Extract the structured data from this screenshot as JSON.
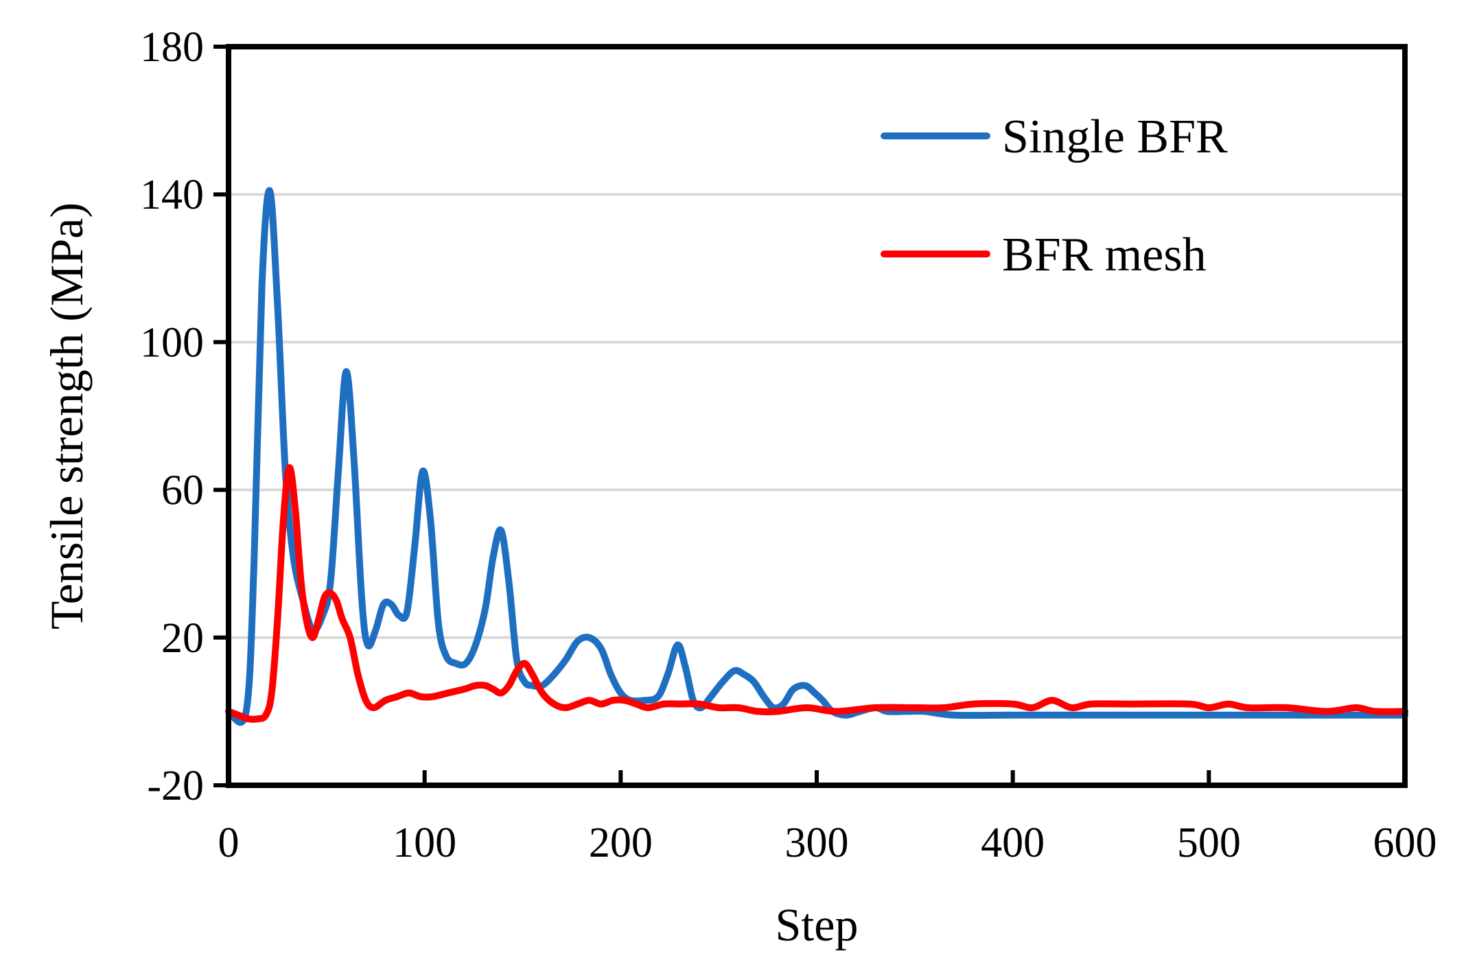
{
  "chart_data": {
    "type": "line",
    "title": "",
    "xlabel": "Step",
    "ylabel": "Tensile strength (MPa)",
    "xlim": [
      0,
      600
    ],
    "ylim": [
      -20,
      180
    ],
    "xticks": [
      "0",
      "100",
      "200",
      "300",
      "400",
      "500",
      "600"
    ],
    "yticks": [
      "-20",
      "20",
      "60",
      "100",
      "140",
      "180"
    ],
    "grid": "horizontal",
    "legend_position": "top-right",
    "series": [
      {
        "name": "Single BFR",
        "color": "#1f6fc1",
        "points": [
          [
            0,
            0
          ],
          [
            9,
            0
          ],
          [
            13,
            40
          ],
          [
            17,
            115
          ],
          [
            21,
            141
          ],
          [
            25,
            110
          ],
          [
            29,
            65
          ],
          [
            33,
            42
          ],
          [
            38,
            30
          ],
          [
            43,
            22
          ],
          [
            48,
            26
          ],
          [
            52,
            35
          ],
          [
            56,
            65
          ],
          [
            60,
            92
          ],
          [
            64,
            68
          ],
          [
            68,
            30
          ],
          [
            71,
            18
          ],
          [
            75,
            22
          ],
          [
            79,
            29
          ],
          [
            83,
            29
          ],
          [
            87,
            26
          ],
          [
            91,
            27
          ],
          [
            95,
            45
          ],
          [
            99,
            65
          ],
          [
            103,
            52
          ],
          [
            107,
            24
          ],
          [
            111,
            15
          ],
          [
            116,
            13
          ],
          [
            121,
            13
          ],
          [
            126,
            18
          ],
          [
            131,
            28
          ],
          [
            135,
            42
          ],
          [
            139,
            49
          ],
          [
            143,
            35
          ],
          [
            147,
            14
          ],
          [
            151,
            8
          ],
          [
            155,
            7
          ],
          [
            160,
            7
          ],
          [
            166,
            10
          ],
          [
            172,
            14
          ],
          [
            178,
            19
          ],
          [
            184,
            20
          ],
          [
            190,
            17
          ],
          [
            195,
            10
          ],
          [
            200,
            5
          ],
          [
            205,
            3
          ],
          [
            212,
            3
          ],
          [
            219,
            4
          ],
          [
            224,
            10
          ],
          [
            229,
            18
          ],
          [
            233,
            12
          ],
          [
            237,
            3
          ],
          [
            241,
            1
          ],
          [
            246,
            4
          ],
          [
            252,
            8
          ],
          [
            258,
            11
          ],
          [
            263,
            10
          ],
          [
            268,
            8
          ],
          [
            273,
            4
          ],
          [
            278,
            1
          ],
          [
            283,
            2
          ],
          [
            288,
            6
          ],
          [
            294,
            7
          ],
          [
            299,
            5
          ],
          [
            303,
            3
          ],
          [
            308,
            0
          ],
          [
            315,
            -1
          ],
          [
            322,
            0
          ],
          [
            330,
            1
          ],
          [
            336,
            0
          ],
          [
            345,
            0
          ],
          [
            355,
            0
          ],
          [
            370,
            -1
          ],
          [
            400,
            -1
          ],
          [
            440,
            -1
          ],
          [
            480,
            -1
          ],
          [
            520,
            -1
          ],
          [
            560,
            -1
          ],
          [
            600,
            -1
          ]
        ]
      },
      {
        "name": "BFR mesh",
        "color": "#ff0000",
        "points": [
          [
            0,
            0
          ],
          [
            5,
            -1
          ],
          [
            10,
            -2
          ],
          [
            15,
            -2
          ],
          [
            19,
            -1
          ],
          [
            22,
            5
          ],
          [
            25,
            25
          ],
          [
            28,
            52
          ],
          [
            31,
            66
          ],
          [
            34,
            55
          ],
          [
            37,
            35
          ],
          [
            40,
            24
          ],
          [
            43,
            20
          ],
          [
            46,
            25
          ],
          [
            49,
            31
          ],
          [
            52,
            32
          ],
          [
            55,
            30
          ],
          [
            58,
            25
          ],
          [
            62,
            20
          ],
          [
            66,
            10
          ],
          [
            70,
            3
          ],
          [
            74,
            1
          ],
          [
            80,
            3
          ],
          [
            86,
            4
          ],
          [
            92,
            5
          ],
          [
            98,
            4
          ],
          [
            104,
            4
          ],
          [
            112,
            5
          ],
          [
            120,
            6
          ],
          [
            126,
            7
          ],
          [
            131,
            7
          ],
          [
            135,
            6
          ],
          [
            139,
            5
          ],
          [
            143,
            7
          ],
          [
            147,
            11
          ],
          [
            151,
            13
          ],
          [
            155,
            10
          ],
          [
            160,
            5
          ],
          [
            166,
            2
          ],
          [
            172,
            1
          ],
          [
            178,
            2
          ],
          [
            184,
            3
          ],
          [
            190,
            2
          ],
          [
            196,
            3
          ],
          [
            202,
            3
          ],
          [
            208,
            2
          ],
          [
            214,
            1
          ],
          [
            222,
            2
          ],
          [
            230,
            2
          ],
          [
            240,
            2
          ],
          [
            250,
            1
          ],
          [
            260,
            1
          ],
          [
            270,
            0
          ],
          [
            280,
            0
          ],
          [
            295,
            1
          ],
          [
            310,
            0
          ],
          [
            330,
            1
          ],
          [
            350,
            1
          ],
          [
            365,
            1
          ],
          [
            380,
            2
          ],
          [
            400,
            2
          ],
          [
            410,
            1
          ],
          [
            420,
            3
          ],
          [
            430,
            1
          ],
          [
            440,
            2
          ],
          [
            460,
            2
          ],
          [
            490,
            2
          ],
          [
            500,
            1
          ],
          [
            510,
            2
          ],
          [
            520,
            1
          ],
          [
            540,
            1
          ],
          [
            560,
            0
          ],
          [
            575,
            1
          ],
          [
            585,
            0
          ],
          [
            600,
            0
          ]
        ]
      }
    ]
  }
}
